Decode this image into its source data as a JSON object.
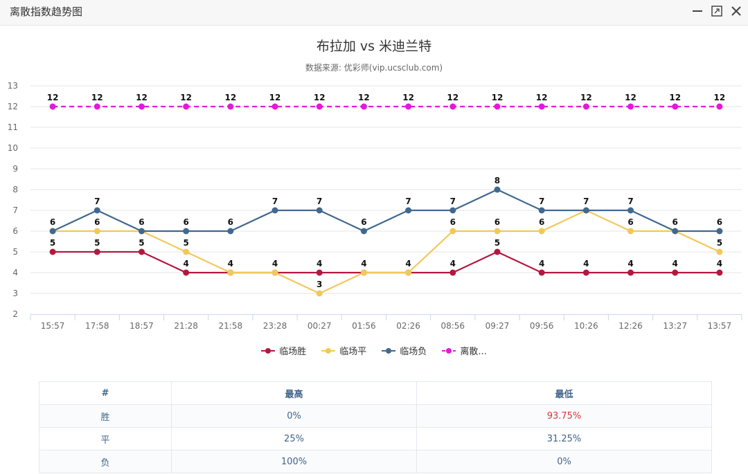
{
  "window": {
    "title": "离散指数趋势图"
  },
  "chart_data": {
    "type": "line",
    "title": "布拉加 vs 米迪兰特",
    "subtitle": "数据来源: 优彩师(vip.ucsclub.com)",
    "categories": [
      "15:57",
      "17:58",
      "18:57",
      "21:28",
      "21:58",
      "23:28",
      "00:27",
      "01:56",
      "02:26",
      "08:56",
      "09:27",
      "09:56",
      "10:26",
      "12:26",
      "13:27",
      "13:57"
    ],
    "ylim": [
      2,
      13
    ],
    "yticks": [
      2,
      3,
      4,
      5,
      6,
      7,
      8,
      9,
      10,
      11,
      12,
      13
    ],
    "grid": true,
    "legend_position": "bottom-center",
    "series": [
      {
        "name": "临场胜",
        "color": "#b5173f",
        "dash": false,
        "values": [
          5,
          5,
          5,
          4,
          4,
          4,
          4,
          4,
          4,
          4,
          5,
          4,
          4,
          4,
          4,
          4
        ]
      },
      {
        "name": "临场平",
        "color": "#f2c85b",
        "dash": false,
        "values": [
          6,
          6,
          6,
          5,
          4,
          4,
          3,
          4,
          4,
          6,
          6,
          6,
          7,
          6,
          6,
          5
        ]
      },
      {
        "name": "临场负",
        "color": "#41688f",
        "dash": false,
        "values": [
          6,
          7,
          6,
          6,
          6,
          7,
          7,
          6,
          7,
          7,
          8,
          7,
          7,
          7,
          6,
          6
        ]
      },
      {
        "name": "离散...",
        "color": "#e11ad8",
        "dash": true,
        "values": [
          12,
          12,
          12,
          12,
          12,
          12,
          12,
          12,
          12,
          12,
          12,
          12,
          12,
          12,
          12,
          12
        ]
      }
    ]
  },
  "table": {
    "headers": [
      "#",
      "最高",
      "最低"
    ],
    "rows": [
      [
        "胜",
        "0%",
        "93.75%"
      ],
      [
        "平",
        "25%",
        "31.25%"
      ],
      [
        "负",
        "100%",
        "0%"
      ]
    ]
  }
}
